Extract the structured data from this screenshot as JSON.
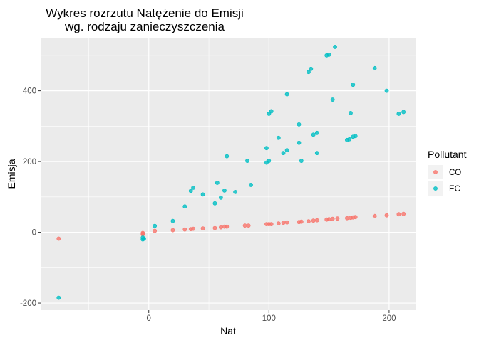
{
  "chart_data": {
    "type": "scatter",
    "title": [
      "Wykres rozrzutu Natężenie do Emisji",
      "wg. rodzaju zanieczyszczenia"
    ],
    "xlabel": "Nat",
    "ylabel": "Emisja",
    "xlim": [
      -90,
      222
    ],
    "ylim": [
      -220,
      550
    ],
    "x_ticks": [
      0,
      100,
      200
    ],
    "y_ticks": [
      -200,
      0,
      200,
      400
    ],
    "grid": true,
    "legend": {
      "title": "Pollutant",
      "position": "right"
    },
    "colors": {
      "CO": "#F8766D",
      "EC": "#00BFC4",
      "panel": "#EBEBEB",
      "grid": "#FFFFFF"
    },
    "series": [
      {
        "name": "CO",
        "points": [
          [
            -75,
            -18
          ],
          [
            -5,
            -2
          ],
          [
            -5,
            -4
          ],
          [
            -5,
            -6
          ],
          [
            5,
            4
          ],
          [
            20,
            6
          ],
          [
            30,
            8
          ],
          [
            35,
            9
          ],
          [
            37,
            10
          ],
          [
            45,
            11
          ],
          [
            55,
            12
          ],
          [
            60,
            14
          ],
          [
            63,
            16
          ],
          [
            65,
            16
          ],
          [
            80,
            19
          ],
          [
            83,
            19
          ],
          [
            98,
            23
          ],
          [
            100,
            23
          ],
          [
            102,
            23
          ],
          [
            108,
            25
          ],
          [
            112,
            27
          ],
          [
            115,
            28
          ],
          [
            125,
            29
          ],
          [
            127,
            30
          ],
          [
            133,
            31
          ],
          [
            137,
            33
          ],
          [
            140,
            34
          ],
          [
            148,
            36
          ],
          [
            150,
            37
          ],
          [
            153,
            38
          ],
          [
            157,
            39
          ],
          [
            165,
            40
          ],
          [
            168,
            41
          ],
          [
            170,
            42
          ],
          [
            172,
            43
          ],
          [
            188,
            46
          ],
          [
            198,
            48
          ],
          [
            208,
            51
          ],
          [
            212,
            52
          ]
        ]
      },
      {
        "name": "EC",
        "points": [
          [
            -75,
            -185
          ],
          [
            -5,
            -15
          ],
          [
            -5,
            -20
          ],
          [
            -4,
            -18
          ],
          [
            5,
            18
          ],
          [
            20,
            32
          ],
          [
            30,
            73
          ],
          [
            35,
            117
          ],
          [
            37,
            126
          ],
          [
            45,
            107
          ],
          [
            55,
            82
          ],
          [
            57,
            140
          ],
          [
            60,
            98
          ],
          [
            63,
            118
          ],
          [
            65,
            215
          ],
          [
            72,
            114
          ],
          [
            82,
            202
          ],
          [
            85,
            134
          ],
          [
            98,
            197
          ],
          [
            98,
            238
          ],
          [
            100,
            202
          ],
          [
            100,
            335
          ],
          [
            102,
            342
          ],
          [
            108,
            267
          ],
          [
            112,
            224
          ],
          [
            115,
            232
          ],
          [
            115,
            390
          ],
          [
            125,
            253
          ],
          [
            125,
            305
          ],
          [
            127,
            202
          ],
          [
            133,
            453
          ],
          [
            135,
            462
          ],
          [
            137,
            276
          ],
          [
            140,
            281
          ],
          [
            140,
            224
          ],
          [
            148,
            500
          ],
          [
            150,
            502
          ],
          [
            153,
            375
          ],
          [
            155,
            524
          ],
          [
            165,
            261
          ],
          [
            167,
            263
          ],
          [
            168,
            337
          ],
          [
            170,
            270
          ],
          [
            170,
            417
          ],
          [
            172,
            272
          ],
          [
            188,
            464
          ],
          [
            198,
            400
          ],
          [
            208,
            335
          ],
          [
            212,
            340
          ]
        ]
      }
    ]
  }
}
